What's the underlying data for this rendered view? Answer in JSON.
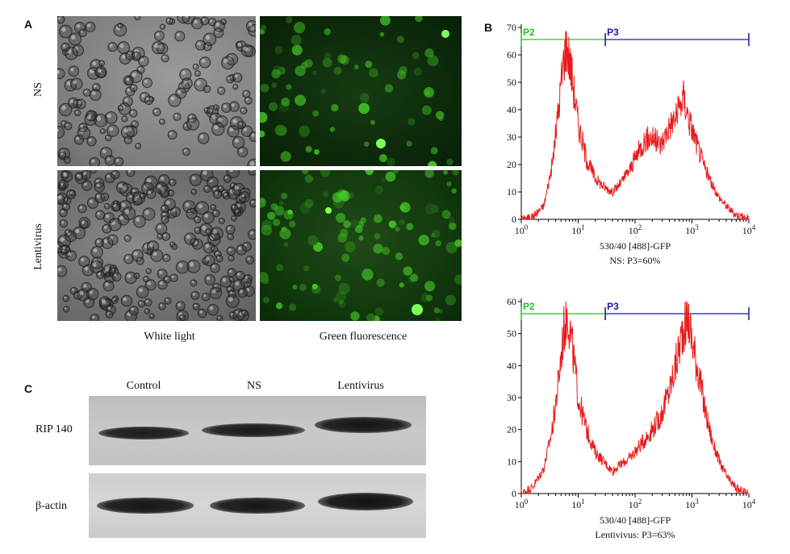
{
  "panels": {
    "a": "A",
    "b": "B",
    "c": "C"
  },
  "panel_a": {
    "rows": [
      "NS",
      "Lentivirus"
    ],
    "columns": [
      "White light",
      "Green fluorescence"
    ]
  },
  "panel_c": {
    "lanes": [
      "Control",
      "NS",
      "Lentivirus"
    ],
    "rows": [
      "RIP 140",
      "β-actin"
    ]
  },
  "chart_data": [
    {
      "type": "area",
      "xscale": "log",
      "x_ticks": [
        "10^0",
        "10^1",
        "10^2",
        "10^3",
        "10^4"
      ],
      "xlim": [
        1,
        10000
      ],
      "ylim": [
        0,
        70
      ],
      "y_ticks": [
        0,
        10,
        20,
        30,
        40,
        50,
        60,
        70
      ],
      "xlabel": "530/40 [488]-GFP",
      "caption": "NS: P3=60%",
      "gates": [
        {
          "name": "P2",
          "x_from": 1,
          "x_to": 30,
          "color": "#22c422"
        },
        {
          "name": "P3",
          "x_from": 30,
          "x_to": 10000,
          "color": "#1a1aa8"
        }
      ],
      "series": [
        {
          "color": "#e81b1b",
          "x": [
            1,
            1.6,
            2.5,
            3.5,
            4.5,
            5.5,
            6.3,
            7.5,
            10,
            14,
            20,
            28,
            40,
            55,
            80,
            110,
            150,
            200,
            280,
            400,
            550,
            700,
            900,
            1200,
            1600,
            2200,
            3000,
            4000,
            5500,
            7500,
            10000
          ],
          "values": [
            0,
            1,
            5,
            20,
            40,
            58,
            64,
            55,
            35,
            22,
            15,
            12,
            10,
            13,
            18,
            24,
            29,
            30,
            27,
            34,
            38,
            45,
            36,
            28,
            20,
            13,
            8,
            5,
            2,
            1,
            0
          ]
        }
      ]
    },
    {
      "type": "area",
      "xscale": "log",
      "x_ticks": [
        "10^0",
        "10^1",
        "10^2",
        "10^3",
        "10^4"
      ],
      "xlim": [
        1,
        10000
      ],
      "ylim": [
        0,
        60
      ],
      "y_ticks": [
        0,
        10,
        20,
        30,
        40,
        50,
        60
      ],
      "xlabel": "530/40 [488]-GFP",
      "caption": "Lentivivus: P3=63%",
      "gates": [
        {
          "name": "P2",
          "x_from": 1,
          "x_to": 30,
          "color": "#22c422"
        },
        {
          "name": "P3",
          "x_from": 30,
          "x_to": 10000,
          "color": "#1a1aa8"
        }
      ],
      "series": [
        {
          "color": "#e81b1b",
          "x": [
            1,
            1.6,
            2.5,
            3.5,
            4.5,
            5.5,
            6.5,
            8,
            10,
            14,
            20,
            28,
            40,
            55,
            80,
            110,
            150,
            200,
            280,
            400,
            550,
            700,
            850,
            1000,
            1300,
            1700,
            2300,
            3200,
            4500,
            6500,
            10000
          ],
          "values": [
            0,
            2,
            8,
            20,
            35,
            50,
            57,
            45,
            30,
            20,
            13,
            10,
            7,
            9,
            11,
            14,
            17,
            20,
            24,
            32,
            42,
            52,
            55,
            48,
            38,
            26,
            16,
            9,
            4,
            1,
            0
          ]
        }
      ]
    }
  ]
}
